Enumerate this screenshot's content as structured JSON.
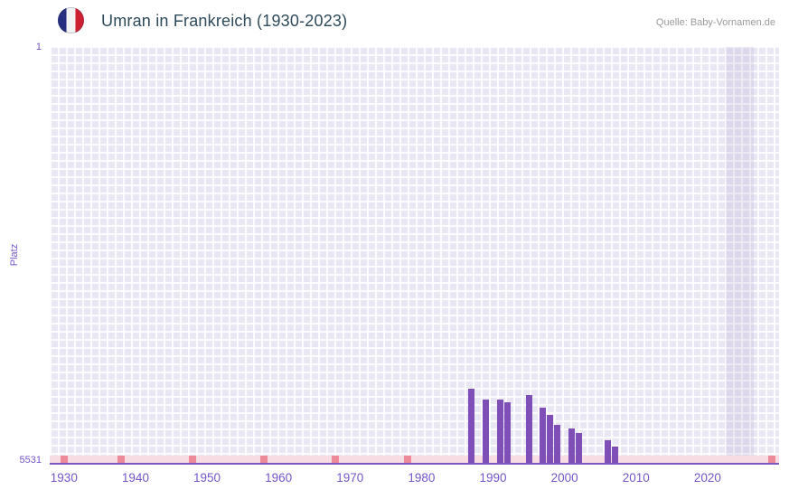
{
  "header": {
    "title": "Umran in Frankreich (1930-2023)",
    "source": "Quelle: Baby-Vornamen.de",
    "flag_icon": "france-flag-roundel"
  },
  "chart_data": {
    "type": "bar",
    "title": "Umran in Frankreich (1930-2023)",
    "xlabel": "",
    "ylabel": "Platz",
    "y_axis": {
      "min": 1,
      "max": 5531,
      "inverted": true,
      "top_label": "1",
      "bottom_label": "5531"
    },
    "x_axis": {
      "min": 1928,
      "max": 2030,
      "tick_years": [
        1930,
        1940,
        1950,
        1960,
        1970,
        1980,
        1990,
        2000,
        2010,
        2020
      ]
    },
    "bars": [
      {
        "year": 1987,
        "rank": 4550
      },
      {
        "year": 1989,
        "rank": 4690
      },
      {
        "year": 1991,
        "rank": 4690
      },
      {
        "year": 1992,
        "rank": 4720
      },
      {
        "year": 1995,
        "rank": 4630
      },
      {
        "year": 1997,
        "rank": 4800
      },
      {
        "year": 1998,
        "rank": 4890
      },
      {
        "year": 1999,
        "rank": 5030
      },
      {
        "year": 2001,
        "rank": 5070
      },
      {
        "year": 2002,
        "rank": 5130
      },
      {
        "year": 2006,
        "rank": 5230
      },
      {
        "year": 2007,
        "rank": 5320
      }
    ],
    "unranked_marks_years": [
      1930,
      1938,
      1948,
      1958,
      1968,
      1978,
      2029
    ],
    "highlight_band": {
      "from_year": 2022.5,
      "to_year": 2026.5
    },
    "grid": true,
    "legend": false,
    "colors": {
      "bar": "#7e4fb6",
      "plot_background": "#eae7f5",
      "grid_line": "#ffffff",
      "highlight_band": "rgba(98,82,140,0.10)",
      "unranked_strip": "#f8dce3",
      "unranked_mark": "#ec8a99",
      "axis_text": "#7555c8",
      "baseline": "#7e57c2",
      "title_text": "#2d4a5a",
      "source_text": "#9a9a9a",
      "flag_blue": "#272f80",
      "flag_red": "#ce2030"
    }
  }
}
